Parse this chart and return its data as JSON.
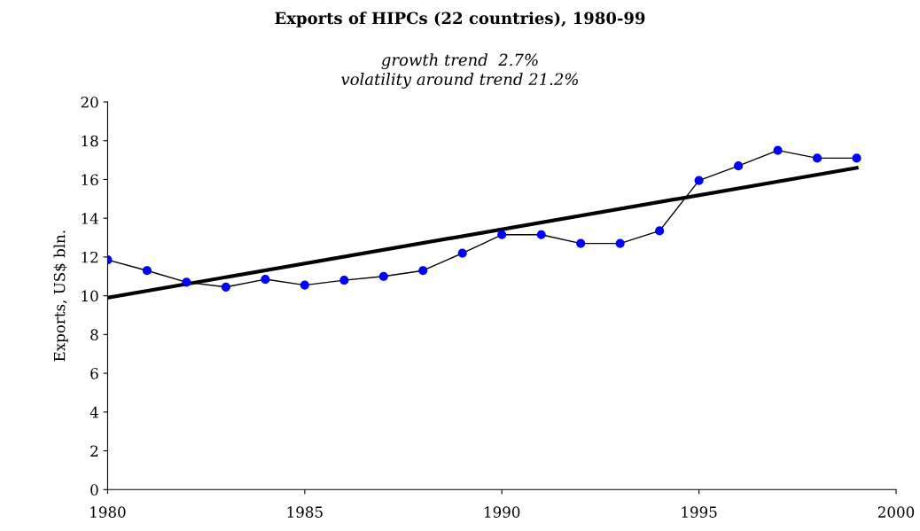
{
  "chart_data": {
    "type": "line",
    "title": "Exports of HIPCs (22 countries), 1980-99",
    "subtitle": "growth trend  2.7%\nvolatility around trend 21.2%",
    "ylabel": "Exports, US$ bln.",
    "x": [
      1980,
      1981,
      1982,
      1983,
      1984,
      1985,
      1986,
      1987,
      1988,
      1989,
      1990,
      1991,
      1992,
      1993,
      1994,
      1995,
      1996,
      1997,
      1998,
      1999
    ],
    "series": [
      {
        "color": "#000000",
        "colors": [
          "#0000ff",
          "#0000ff",
          "#0000ff",
          "#0000ff",
          "#0000ff",
          "#0000ff",
          "#0000ff",
          "#0000ff",
          "#0000ff",
          "#0000ff",
          "#0000ff",
          "#0000ff",
          "#0000ff",
          "#0000ff",
          "#0000ff",
          "#0000ff",
          "#0000ff",
          "#0000ff",
          "#0000ff",
          "#0000ff"
        ],
        "marker": "circle",
        "values": [
          11.85,
          11.3,
          10.7,
          10.45,
          10.85,
          10.55,
          10.8,
          11.0,
          11.3,
          12.2,
          13.15,
          13.15,
          12.7,
          12.7,
          13.35,
          15.95,
          16.7,
          17.5,
          17.1,
          17.1
        ]
      },
      {
        "type": "line",
        "color": "#000000",
        "marker": "none",
        "x": [
          1980,
          1999
        ],
        "values": [
          9.9,
          16.6
        ]
      }
    ],
    "xlim": [
      1980,
      2000
    ],
    "xticks": [
      1980,
      1985,
      1990,
      1995,
      2000
    ],
    "ylim": [
      0,
      20
    ],
    "yticks": [
      0,
      2,
      4,
      6,
      8,
      10,
      12,
      14,
      16,
      18,
      20
    ],
    "grid": false,
    "legend": false
  }
}
